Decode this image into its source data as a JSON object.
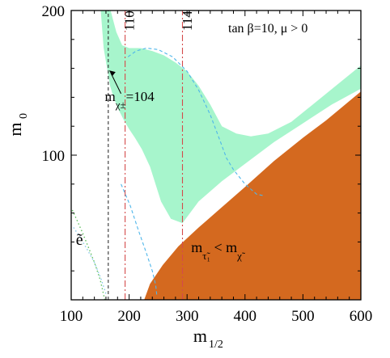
{
  "chart_data": {
    "type": "area",
    "xlabel_base": "m",
    "xlabel_sub": "1/2",
    "ylabel_base": "m",
    "ylabel_sub": "0",
    "xlim": [
      100,
      600
    ],
    "ylim": [
      0,
      200
    ],
    "xticks": [
      100,
      200,
      300,
      400,
      500,
      600
    ],
    "yticks": [
      100,
      200
    ],
    "params_label": "tan β=10, μ > 0",
    "regions": [
      {
        "name": "green-allowed-band",
        "color": "#a7f5cc",
        "boundary": [
          [
            151,
            200
          ],
          [
            156,
            174
          ],
          [
            162,
            160
          ],
          [
            167,
            148
          ],
          [
            173,
            140
          ],
          [
            181,
            132
          ],
          [
            190,
            125
          ],
          [
            200,
            118
          ],
          [
            210,
            112
          ],
          [
            222,
            104
          ],
          [
            236,
            92
          ],
          [
            255,
            68
          ],
          [
            272,
            56
          ],
          [
            292,
            53
          ],
          [
            320,
            68
          ],
          [
            360,
            82
          ],
          [
            400,
            94
          ],
          [
            450,
            109
          ],
          [
            500,
            122
          ],
          [
            550,
            135
          ],
          [
            600,
            146
          ],
          [
            600,
            162
          ],
          [
            560,
            149
          ],
          [
            520,
            136
          ],
          [
            480,
            123
          ],
          [
            440,
            115
          ],
          [
            410,
            113
          ],
          [
            385,
            115
          ],
          [
            360,
            120
          ],
          [
            340,
            135
          ],
          [
            320,
            148
          ],
          [
            300,
            158
          ],
          [
            280,
            164
          ],
          [
            260,
            169
          ],
          [
            240,
            172
          ],
          [
            220,
            174
          ],
          [
            200,
            174
          ],
          [
            188,
            176
          ],
          [
            178,
            185
          ],
          [
            168,
            200
          ]
        ]
      },
      {
        "name": "orange-stau-lsp",
        "color": "#d4691f",
        "boundary": [
          [
            226,
            0
          ],
          [
            236,
            11
          ],
          [
            258,
            24
          ],
          [
            285,
            37
          ],
          [
            320,
            50
          ],
          [
            360,
            64
          ],
          [
            400,
            78
          ],
          [
            450,
            96
          ],
          [
            500,
            112
          ],
          [
            540,
            124
          ],
          [
            570,
            134
          ],
          [
            600,
            144
          ],
          [
            600,
            0
          ]
        ]
      }
    ],
    "curves": [
      {
        "name": "mh-110",
        "style": "dash-dot",
        "color": "#d44b4b",
        "points": [
          [
            193,
            0
          ],
          [
            193,
            200
          ]
        ]
      },
      {
        "name": "mh-114",
        "style": "dash-dot",
        "color": "#d44b4b",
        "points": [
          [
            292,
            0
          ],
          [
            292,
            200
          ]
        ]
      },
      {
        "name": "chargino-104",
        "style": "dashed",
        "color": "#333333",
        "points": [
          [
            164,
            0
          ],
          [
            164,
            200
          ]
        ]
      },
      {
        "name": "cyan-dashed-upper",
        "style": "dashed",
        "color": "#4fb6ea",
        "points": [
          [
            198,
            168
          ],
          [
            212,
            172
          ],
          [
            230,
            174
          ],
          [
            250,
            173
          ],
          [
            275,
            168
          ],
          [
            300,
            158
          ],
          [
            320,
            145
          ],
          [
            340,
            128
          ],
          [
            355,
            112
          ],
          [
            368,
            98
          ],
          [
            380,
            90
          ],
          [
            400,
            80
          ],
          [
            420,
            73
          ],
          [
            432,
            72
          ]
        ]
      },
      {
        "name": "cyan-dashed-lower",
        "style": "dashed",
        "color": "#4fb6ea",
        "points": [
          [
            186,
            80
          ],
          [
            202,
            65
          ],
          [
            216,
            48
          ],
          [
            230,
            32
          ],
          [
            240,
            20
          ],
          [
            246,
            10
          ],
          [
            248,
            2
          ]
        ]
      },
      {
        "name": "green-dotted-left",
        "style": "dotted",
        "color": "#5fbf5f",
        "points": [
          [
            102,
            62
          ],
          [
            110,
            55
          ],
          [
            120,
            46
          ],
          [
            130,
            36
          ],
          [
            140,
            26
          ],
          [
            150,
            14
          ],
          [
            158,
            0
          ]
        ]
      },
      {
        "name": "cyan-dotted-left",
        "style": "dotted",
        "color": "#88c9e8",
        "points": [
          [
            104,
            50
          ],
          [
            114,
            44
          ],
          [
            126,
            36
          ],
          [
            140,
            26
          ],
          [
            152,
            14
          ],
          [
            160,
            4
          ]
        ]
      }
    ],
    "labels": [
      {
        "name": "label-110",
        "text": "110",
        "x": 194,
        "y": 186
      },
      {
        "name": "label-114",
        "text": "114",
        "x": 294,
        "y": 186
      },
      {
        "name": "label-chargino",
        "text": "m",
        "sub": "χ±",
        "value": "=104",
        "x": 165,
        "y": 147
      },
      {
        "name": "label-stau",
        "text": "m",
        "sub1": "τ̃₁",
        "mid": "< m",
        "sub2": "χ̃",
        "x": 307,
        "y": 33
      },
      {
        "name": "label-selectron",
        "text": "ẽ",
        "x": 108,
        "y": 38
      }
    ]
  }
}
